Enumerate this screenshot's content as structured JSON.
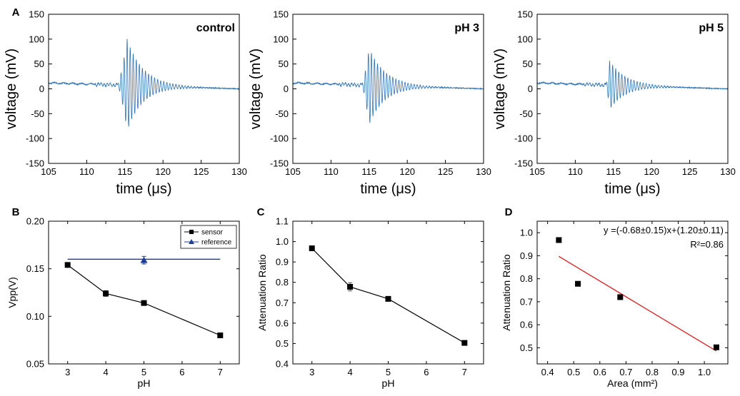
{
  "figure": {
    "panel_labels": [
      "A",
      "B",
      "C",
      "D"
    ]
  },
  "chart_data": [
    {
      "type": "line",
      "panel": "A1",
      "title": "control",
      "xlabel": "time (μs)",
      "ylabel": "voltage (mV)",
      "xlim": [
        105,
        130
      ],
      "ylim": [
        -150,
        150
      ],
      "xticks": [
        105,
        110,
        115,
        120,
        125,
        130
      ],
      "yticks": [
        -150,
        -100,
        -50,
        0,
        50,
        100,
        150
      ],
      "color": "#2f73b6",
      "signal": {
        "baseline_start": 12,
        "baseline_end": 0,
        "onset_us": 114,
        "pos_peak_mV": 100,
        "neg_peak_mV": -84,
        "peak_us": 115.3,
        "period_us": 0.4
      }
    },
    {
      "type": "line",
      "panel": "A2",
      "title": "pH 3",
      "xlabel": "time (μs)",
      "ylabel": "voltage (mV)",
      "xlim": [
        105,
        130
      ],
      "ylim": [
        -150,
        150
      ],
      "xticks": [
        105,
        110,
        115,
        120,
        125,
        130
      ],
      "yticks": [
        -150,
        -100,
        -50,
        0,
        50,
        100,
        150
      ],
      "color": "#2f73b6",
      "signal": {
        "baseline_start": 12,
        "baseline_end": 0,
        "onset_us": 114,
        "pos_peak_mV": 82,
        "neg_peak_mV": -72,
        "peak_us": 115.0,
        "period_us": 0.4
      }
    },
    {
      "type": "line",
      "panel": "A3",
      "title": "pH 5",
      "xlabel": "time (μs)",
      "ylabel": "voltage (mV)",
      "xlim": [
        105,
        130
      ],
      "ylim": [
        -150,
        150
      ],
      "xticks": [
        105,
        110,
        115,
        120,
        125,
        130
      ],
      "yticks": [
        -150,
        -100,
        -50,
        0,
        50,
        100,
        150
      ],
      "color": "#2f73b6",
      "signal": {
        "baseline_start": 12,
        "baseline_end": 0,
        "onset_us": 114,
        "pos_peak_mV": 56,
        "neg_peak_mV": -42,
        "peak_us": 114.5,
        "period_us": 0.4
      }
    },
    {
      "type": "line",
      "panel": "B",
      "xlabel": "pH",
      "ylabel": "Vpp(V)",
      "xlim": [
        2.5,
        7.5
      ],
      "ylim": [
        0.05,
        0.2
      ],
      "xticks": [
        3,
        4,
        5,
        6,
        7
      ],
      "yticks": [
        0.05,
        0.1,
        0.15,
        0.2
      ],
      "ytick_labels": [
        "0.05",
        "0.10",
        "0.15",
        "0.20"
      ],
      "legend": {
        "position": "top-right",
        "entries": [
          "sensor",
          "reference"
        ]
      },
      "series": [
        {
          "name": "sensor",
          "marker": "square",
          "color": "#000000",
          "x": [
            3,
            4,
            5,
            7
          ],
          "y": [
            0.154,
            0.124,
            0.114,
            0.08
          ],
          "err": [
            0.001,
            0.003,
            0.002,
            0.001
          ]
        },
        {
          "name": "reference",
          "marker": "triangle",
          "color": "#1f3d99",
          "x": [
            5
          ],
          "y": [
            0.159
          ],
          "err": [
            0.004
          ],
          "hline": 0.16,
          "hline_x": [
            3,
            7
          ]
        }
      ]
    },
    {
      "type": "line",
      "panel": "C",
      "xlabel": "pH",
      "ylabel": "Attenuation Ratio",
      "xlim": [
        2.5,
        7.5
      ],
      "ylim": [
        0.4,
        1.1
      ],
      "xticks": [
        3,
        4,
        5,
        6,
        7
      ],
      "yticks": [
        0.4,
        0.5,
        0.6,
        0.7,
        0.8,
        0.9,
        1.0,
        1.1
      ],
      "ytick_labels": [
        "0.4",
        "0.5",
        "0.6",
        "0.7",
        "0.8",
        "0.9",
        "1.0",
        "1.1"
      ],
      "series": [
        {
          "name": "attenuation",
          "marker": "square",
          "color": "#000000",
          "x": [
            3,
            4,
            5,
            7
          ],
          "y": [
            0.967,
            0.778,
            0.719,
            0.503
          ],
          "err": [
            0.004,
            0.02,
            0.005,
            0.004
          ]
        }
      ]
    },
    {
      "type": "scatter",
      "panel": "D",
      "xlabel": "Area (mm²)",
      "ylabel": "Attenuation Ratio",
      "xlim": [
        0.36,
        1.09
      ],
      "ylim": [
        0.43,
        1.05
      ],
      "xticks": [
        0.4,
        0.5,
        0.6,
        0.7,
        0.8,
        0.9,
        1.0
      ],
      "xtick_labels": [
        "0.4",
        "0.5",
        "0.6",
        "0.7",
        "0.8",
        "0.9",
        "1.0"
      ],
      "yticks": [
        0.5,
        0.6,
        0.7,
        0.8,
        0.9,
        1.0
      ],
      "ytick_labels": [
        "0.5",
        "0.6",
        "0.7",
        "0.8",
        "0.9",
        "1.0"
      ],
      "annotations": [
        "y =(-0.68±0.15)x+(1.20±0.11)",
        "R²=0.86"
      ],
      "series": [
        {
          "name": "data",
          "marker": "square",
          "color": "#000000",
          "x": [
            0.443,
            0.516,
            0.678,
            1.046
          ],
          "y": [
            0.968,
            0.778,
            0.72,
            0.502
          ]
        }
      ],
      "fit": {
        "color": "#d62020",
        "x": [
          0.443,
          1.046
        ],
        "y": [
          0.897,
          0.486
        ]
      }
    }
  ]
}
